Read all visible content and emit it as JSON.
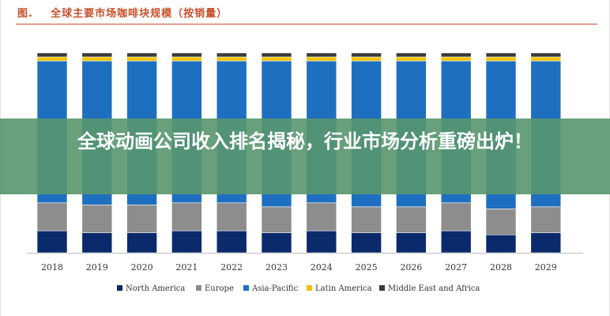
{
  "figure": {
    "label": "图.",
    "title": "全球主要市场咖啡块规模（按销量）"
  },
  "overlay": {
    "headline": "全球动画公司收入排名揭秘，行业市场分析重磅出炉！"
  },
  "chart_data": {
    "type": "bar",
    "stacked": true,
    "percent_stacked": true,
    "categories": [
      "2018",
      "2019",
      "2020",
      "2021",
      "2022",
      "2023",
      "2024",
      "2025",
      "2026",
      "2027",
      "2028",
      "2029"
    ],
    "series": [
      {
        "name": "North America",
        "color": "#0b2a6b",
        "values": [
          11,
          10,
          10,
          11,
          11,
          10,
          11,
          10,
          10,
          11,
          9,
          10
        ]
      },
      {
        "name": "Europe",
        "color": "#8d8d8d",
        "values": [
          14,
          14,
          14,
          14,
          14,
          13,
          14,
          13,
          13,
          14,
          13,
          13
        ]
      },
      {
        "name": "Asia-Pacific",
        "color": "#1e6fc0",
        "values": [
          71,
          72,
          72,
          71,
          71,
          73,
          71,
          73,
          73,
          71,
          74,
          73
        ]
      },
      {
        "name": "Latin America",
        "color": "#f2c200",
        "values": [
          2,
          2,
          2,
          2,
          2,
          2,
          2,
          2,
          2,
          2,
          2,
          2
        ]
      },
      {
        "name": "Middle East and Africa",
        "color": "#3a3a3a",
        "values": [
          2,
          2,
          2,
          2,
          2,
          2,
          2,
          2,
          2,
          2,
          2,
          2
        ]
      }
    ],
    "ylim": [
      0,
      100
    ],
    "grid": false,
    "legend": "bottom"
  }
}
